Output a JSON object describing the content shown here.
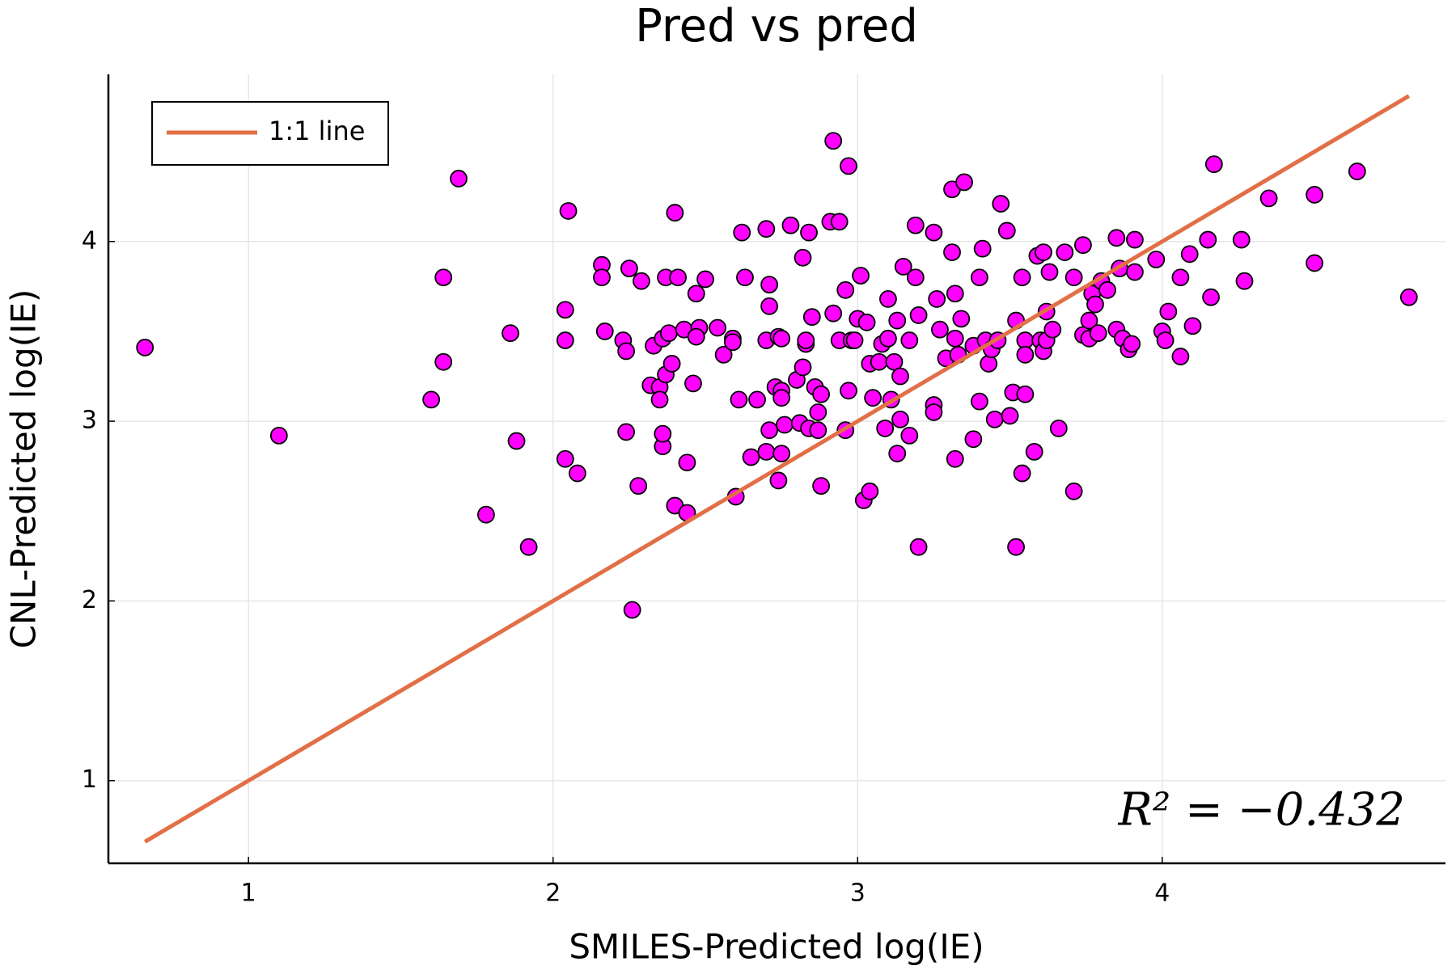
{
  "chart_data": {
    "type": "scatter",
    "title": "Pred vs pred",
    "x_label": "SMILES-Predicted log(IE)",
    "y_label": "CNL-Predicted log(IE)",
    "annotation": "R² = −0.432",
    "xlim": [
      0.54,
      4.93
    ],
    "ylim": [
      0.54,
      4.93
    ],
    "xticks": [
      1,
      2,
      3,
      4
    ],
    "yticks": [
      1,
      2,
      3,
      4
    ],
    "grid": true,
    "legend": "top-left",
    "series": [
      {
        "type": "scatter",
        "color": "#ff00ff",
        "x": [
          0.66,
          1.1,
          1.69,
          1.64,
          1.64,
          1.6,
          1.86,
          1.88,
          1.78,
          1.92,
          2.05,
          2.04,
          2.04,
          2.04,
          2.08,
          2.16,
          2.16,
          2.17,
          2.23,
          2.24,
          2.24,
          2.25,
          2.29,
          2.28,
          2.26,
          2.32,
          2.35,
          2.33,
          2.35,
          2.36,
          2.36,
          2.36,
          2.37,
          2.38,
          2.39,
          2.37,
          2.4,
          2.41,
          2.4,
          2.44,
          2.44,
          2.43,
          2.47,
          2.46,
          2.48,
          2.47,
          2.5,
          2.54,
          2.56,
          2.59,
          2.59,
          2.6,
          2.62,
          2.61,
          2.63,
          2.65,
          2.67,
          2.7,
          2.7,
          2.71,
          2.71,
          2.71,
          2.7,
          2.73,
          2.74,
          2.75,
          2.75,
          2.74,
          2.75,
          2.75,
          2.76,
          2.78,
          2.8,
          2.81,
          2.82,
          2.82,
          2.83,
          2.83,
          2.84,
          2.84,
          2.85,
          2.86,
          2.87,
          2.87,
          2.88,
          2.88,
          2.92,
          2.91,
          2.92,
          2.94,
          2.94,
          2.97,
          2.96,
          2.96,
          2.98,
          2.97,
          2.99,
          3.0,
          3.01,
          3.02,
          3.04,
          3.03,
          3.04,
          3.05,
          3.07,
          3.08,
          3.09,
          3.1,
          3.1,
          3.11,
          3.12,
          3.13,
          3.13,
          3.14,
          3.14,
          3.15,
          3.17,
          3.17,
          3.19,
          3.19,
          3.2,
          3.2,
          3.25,
          3.25,
          3.25,
          3.26,
          3.27,
          3.29,
          3.31,
          3.31,
          3.32,
          3.32,
          3.32,
          3.33,
          3.34,
          3.35,
          3.38,
          3.38,
          3.4,
          3.4,
          3.41,
          3.42,
          3.43,
          3.44,
          3.45,
          3.46,
          3.47,
          3.49,
          3.5,
          3.51,
          3.52,
          3.52,
          3.54,
          3.54,
          3.55,
          3.55,
          3.55,
          3.58,
          3.59,
          3.6,
          3.61,
          3.61,
          3.62,
          3.62,
          3.63,
          3.64,
          3.66,
          3.68,
          3.71,
          3.71,
          3.74,
          3.74,
          3.76,
          3.76,
          3.77,
          3.78,
          3.79,
          3.8,
          3.82,
          3.85,
          3.85,
          3.86,
          3.87,
          3.89,
          3.9,
          3.91,
          3.91,
          3.98,
          4.0,
          4.01,
          4.02,
          4.06,
          4.06,
          4.09,
          4.1,
          4.15,
          4.16,
          4.17,
          4.26,
          4.27,
          4.35,
          4.5,
          4.5,
          4.64,
          4.81
        ],
        "y": [
          3.41,
          2.92,
          4.35,
          3.33,
          3.8,
          3.12,
          3.49,
          2.89,
          2.48,
          2.3,
          4.17,
          3.62,
          3.45,
          2.79,
          2.71,
          3.87,
          3.8,
          3.5,
          3.45,
          3.39,
          2.94,
          3.85,
          3.78,
          2.64,
          1.95,
          3.2,
          3.19,
          3.42,
          3.12,
          3.46,
          2.86,
          2.93,
          3.26,
          3.49,
          3.32,
          3.8,
          4.16,
          3.8,
          2.53,
          2.77,
          2.49,
          3.51,
          3.71,
          3.21,
          3.52,
          3.47,
          3.79,
          3.52,
          3.37,
          3.46,
          3.44,
          2.58,
          4.05,
          3.12,
          3.8,
          2.8,
          3.12,
          4.07,
          2.83,
          3.64,
          3.76,
          2.95,
          3.45,
          3.19,
          3.47,
          3.46,
          2.82,
          2.67,
          3.17,
          3.13,
          2.98,
          4.09,
          3.23,
          2.99,
          3.91,
          3.3,
          3.43,
          3.45,
          4.05,
          2.96,
          3.58,
          3.19,
          2.95,
          3.05,
          2.64,
          3.15,
          4.56,
          4.11,
          3.6,
          4.11,
          3.45,
          4.42,
          3.73,
          2.95,
          3.45,
          3.17,
          3.45,
          3.57,
          3.81,
          2.56,
          2.61,
          3.55,
          3.32,
          3.13,
          3.33,
          3.43,
          2.96,
          3.46,
          3.68,
          3.12,
          3.33,
          3.56,
          2.82,
          3.01,
          3.25,
          3.86,
          3.45,
          2.92,
          4.09,
          3.8,
          3.59,
          2.3,
          4.05,
          3.09,
          3.05,
          3.68,
          3.51,
          3.35,
          3.94,
          4.29,
          2.79,
          3.46,
          3.71,
          3.37,
          3.57,
          4.33,
          3.42,
          2.9,
          3.11,
          3.8,
          3.96,
          3.45,
          3.32,
          3.4,
          3.01,
          3.45,
          4.21,
          4.06,
          3.03,
          3.16,
          3.56,
          2.3,
          2.71,
          3.8,
          3.45,
          3.37,
          3.15,
          2.83,
          3.92,
          3.45,
          3.39,
          3.94,
          3.61,
          3.45,
          3.83,
          3.51,
          2.96,
          3.94,
          2.61,
          3.8,
          3.98,
          3.48,
          3.56,
          3.46,
          3.71,
          3.65,
          3.49,
          3.78,
          3.73,
          4.02,
          3.51,
          3.85,
          3.46,
          3.4,
          3.43,
          4.01,
          3.83,
          3.9,
          3.5,
          3.45,
          3.61,
          3.8,
          3.36,
          3.93,
          3.53,
          4.01,
          3.69,
          4.43,
          4.01,
          3.78,
          4.24,
          4.26,
          3.88,
          4.39,
          3.69
        ]
      },
      {
        "type": "line",
        "name": "1:1 line",
        "color": "#e26f46",
        "x": [
          0.66,
          4.81
        ],
        "y": [
          0.66,
          4.81
        ]
      }
    ]
  }
}
